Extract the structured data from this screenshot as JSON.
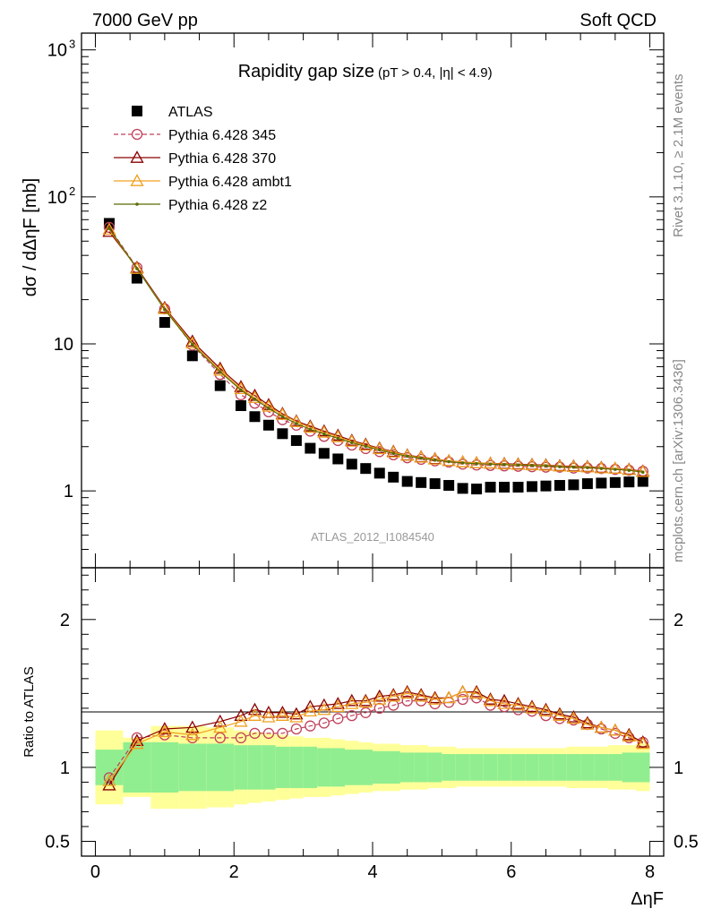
{
  "header": {
    "left": "7000 GeV pp",
    "right": "Soft QCD"
  },
  "side_labels": {
    "rivet": "Rivet 3.1.10, ≥ 2.1M events",
    "mcplots": "mcplots.cern.ch [arXiv:1306.3436]"
  },
  "chart_data": {
    "type": "scatter",
    "title": "Rapidity gap size",
    "title_suffix": "(pT > 0.4, |η| < 4.9)",
    "watermark": "ATLAS_2012_I1084540",
    "xlabel": "ΔηF",
    "ylabel": "dσ / dΔηF [mb]",
    "xlim": [
      -0.2,
      8.2
    ],
    "ylim_log": [
      0.3,
      1300
    ],
    "yscale": "log",
    "x_ticks": [
      "0",
      "2",
      "4",
      "6",
      "8"
    ],
    "y_ticks": [
      "1",
      "10",
      "10^2",
      "10^3"
    ],
    "x": [
      0.2,
      0.6,
      1.0,
      1.4,
      1.8,
      2.1,
      2.3,
      2.5,
      2.7,
      2.9,
      3.1,
      3.3,
      3.5,
      3.7,
      3.9,
      4.1,
      4.3,
      4.5,
      4.7,
      4.9,
      5.1,
      5.3,
      5.5,
      5.7,
      5.9,
      6.1,
      6.3,
      6.5,
      6.7,
      6.9,
      7.1,
      7.3,
      7.5,
      7.7,
      7.9
    ],
    "legend_position": "top-left",
    "series": [
      {
        "name": "ATLAS",
        "color": "#000000",
        "marker": "square",
        "line": "none",
        "values": [
          66,
          28,
          14,
          8.3,
          5.2,
          3.8,
          3.2,
          2.8,
          2.45,
          2.2,
          1.95,
          1.8,
          1.65,
          1.52,
          1.42,
          1.32,
          1.24,
          1.16,
          1.14,
          1.12,
          1.09,
          1.04,
          1.03,
          1.06,
          1.06,
          1.06,
          1.07,
          1.08,
          1.09,
          1.1,
          1.12,
          1.13,
          1.14,
          1.15,
          1.16
        ]
      },
      {
        "name": "Pythia 6.428 345",
        "color": "#c0405a",
        "marker": "circle",
        "line": "dashed",
        "values": [
          62,
          33,
          17.3,
          9.8,
          6.2,
          4.5,
          3.95,
          3.45,
          3.05,
          2.8,
          2.55,
          2.35,
          2.2,
          2.05,
          1.94,
          1.85,
          1.76,
          1.68,
          1.64,
          1.6,
          1.57,
          1.52,
          1.5,
          1.49,
          1.48,
          1.47,
          1.46,
          1.45,
          1.45,
          1.43,
          1.43,
          1.42,
          1.4,
          1.38,
          1.36
        ]
      },
      {
        "name": "Pythia 6.428 370",
        "color": "#8b0000",
        "marker": "triangle",
        "line": "solid",
        "values": [
          58,
          33,
          17.6,
          10.4,
          6.8,
          5.1,
          4.45,
          3.85,
          3.35,
          2.98,
          2.75,
          2.55,
          2.38,
          2.2,
          2.07,
          1.95,
          1.85,
          1.75,
          1.7,
          1.65,
          1.6,
          1.57,
          1.55,
          1.54,
          1.53,
          1.52,
          1.51,
          1.5,
          1.48,
          1.47,
          1.46,
          1.44,
          1.42,
          1.4,
          1.36
        ]
      },
      {
        "name": "Pythia 6.428 ambt1",
        "color": "#f0a020",
        "marker": "triangle",
        "line": "solid",
        "values": [
          60,
          32.5,
          17.3,
          10.1,
          6.6,
          4.95,
          4.3,
          3.75,
          3.3,
          2.95,
          2.7,
          2.5,
          2.33,
          2.17,
          2.04,
          1.93,
          1.83,
          1.74,
          1.69,
          1.64,
          1.6,
          1.57,
          1.55,
          1.54,
          1.52,
          1.51,
          1.5,
          1.49,
          1.47,
          1.46,
          1.45,
          1.43,
          1.42,
          1.39,
          1.35
        ]
      },
      {
        "name": "Pythia 6.428 z2",
        "color": "#5a6b00",
        "marker": "dot",
        "line": "solid",
        "values": [
          61,
          32.5,
          17.1,
          9.9,
          6.45,
          4.85,
          4.2,
          3.65,
          3.2,
          2.87,
          2.62,
          2.44,
          2.28,
          2.13,
          2.01,
          1.9,
          1.8,
          1.72,
          1.67,
          1.62,
          1.58,
          1.55,
          1.53,
          1.52,
          1.51,
          1.5,
          1.49,
          1.48,
          1.46,
          1.45,
          1.44,
          1.42,
          1.4,
          1.38,
          1.34
        ]
      }
    ],
    "ratio": {
      "ylabel": "Ratio to ATLAS",
      "ylim": [
        0.4,
        2.35
      ],
      "y_ticks": [
        "0.5",
        "1",
        "2"
      ],
      "band_inner_color": "#90ee90",
      "band_outer_color": "#ffff99",
      "band_edges": [
        0.0,
        0.4,
        0.8,
        1.2,
        1.6,
        2.0,
        2.2,
        2.4,
        2.6,
        2.8,
        3.0,
        3.2,
        3.4,
        3.6,
        3.8,
        4.0,
        4.2,
        4.4,
        4.6,
        4.8,
        5.0,
        5.2,
        5.4,
        5.6,
        5.8,
        6.0,
        6.2,
        6.4,
        6.6,
        6.8,
        7.0,
        7.2,
        7.4,
        7.6,
        7.8,
        8.0
      ],
      "band_inner": [
        0.12,
        0.17,
        0.17,
        0.16,
        0.16,
        0.15,
        0.15,
        0.15,
        0.14,
        0.14,
        0.14,
        0.13,
        0.13,
        0.12,
        0.12,
        0.11,
        0.11,
        0.1,
        0.1,
        0.1,
        0.09,
        0.09,
        0.09,
        0.09,
        0.09,
        0.09,
        0.09,
        0.09,
        0.09,
        0.09,
        0.09,
        0.09,
        0.09,
        0.1,
        0.1
      ],
      "band_outer": [
        0.25,
        0.2,
        0.28,
        0.28,
        0.27,
        0.25,
        0.24,
        0.23,
        0.22,
        0.21,
        0.2,
        0.2,
        0.19,
        0.18,
        0.17,
        0.16,
        0.16,
        0.15,
        0.15,
        0.14,
        0.14,
        0.13,
        0.13,
        0.13,
        0.13,
        0.13,
        0.13,
        0.13,
        0.13,
        0.14,
        0.14,
        0.14,
        0.15,
        0.15,
        0.16
      ],
      "series_values": [
        [
          0.93,
          1.2,
          1.22,
          1.2,
          1.2,
          1.2,
          1.23,
          1.23,
          1.23,
          1.26,
          1.28,
          1.3,
          1.33,
          1.35,
          1.37,
          1.4,
          1.42,
          1.45,
          1.45,
          1.43,
          1.44,
          1.46,
          1.47,
          1.42,
          1.41,
          1.39,
          1.38,
          1.35,
          1.33,
          1.32,
          1.29,
          1.26,
          1.23,
          1.2,
          1.17
        ],
        [
          0.88,
          1.18,
          1.26,
          1.27,
          1.31,
          1.35,
          1.39,
          1.37,
          1.37,
          1.36,
          1.41,
          1.42,
          1.43,
          1.45,
          1.45,
          1.48,
          1.49,
          1.51,
          1.49,
          1.47,
          1.47,
          1.51,
          1.51,
          1.46,
          1.45,
          1.43,
          1.41,
          1.39,
          1.36,
          1.34,
          1.3,
          1.27,
          1.25,
          1.22,
          1.17
        ],
        [
          0.91,
          1.16,
          1.24,
          1.22,
          1.27,
          1.31,
          1.35,
          1.34,
          1.35,
          1.34,
          1.38,
          1.39,
          1.41,
          1.43,
          1.44,
          1.46,
          1.48,
          1.5,
          1.48,
          1.46,
          1.47,
          1.51,
          1.5,
          1.45,
          1.43,
          1.42,
          1.4,
          1.38,
          1.35,
          1.33,
          1.29,
          1.27,
          1.25,
          1.21,
          1.16
        ]
      ],
      "series_index": [
        1,
        2,
        3
      ]
    }
  }
}
